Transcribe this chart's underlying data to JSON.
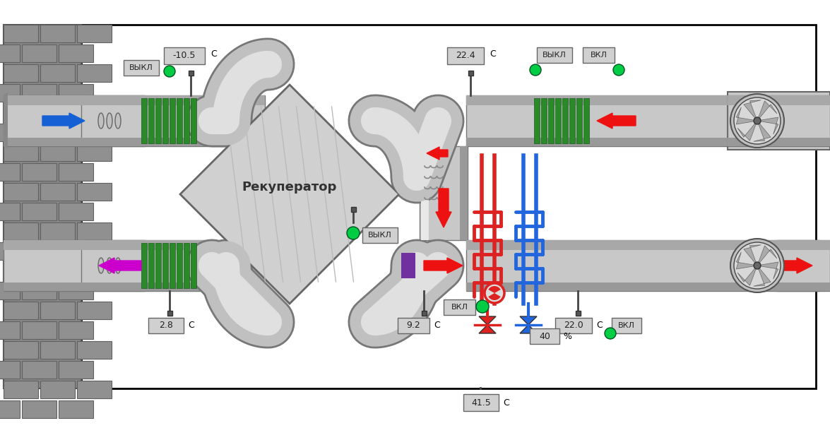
{
  "bg_color": "#ffffff",
  "border_color": "#000000",
  "wall_color": "#808080",
  "pipe_mid": "#c8c8c8",
  "pipe_light": "#e8e8e8",
  "pipe_dark": "#888888",
  "recuperator_fill": "#cccccc",
  "recuperator_outline": "#666666",
  "green_filter": "#3a9a3a",
  "blue_arrow": "#1560d4",
  "red_arrow": "#ee1111",
  "magenta_arrow": "#cc00cc",
  "purple_block": "#7030a0",
  "sensor_box_bg": "#d0d0d0",
  "sensor_box_edge": "#666666",
  "green_dot": "#00cc44",
  "fan_fill": "#d0d0d0",
  "fan_edge": "#555555",
  "heater_color": "#dd2222",
  "cooler_color": "#2266dd",
  "labels": {
    "temp1": "-10.5",
    "temp2": "2.8",
    "temp3": "22.4",
    "temp4": "22.0",
    "temp5": "9.2",
    "temp6": "41.5",
    "pct": "40",
    "unit_c": "С",
    "unit_pct": "%",
    "recuperator": "Рекуператор",
    "vykl": "ВЫКЛ",
    "vkl": "ВКЛ"
  }
}
